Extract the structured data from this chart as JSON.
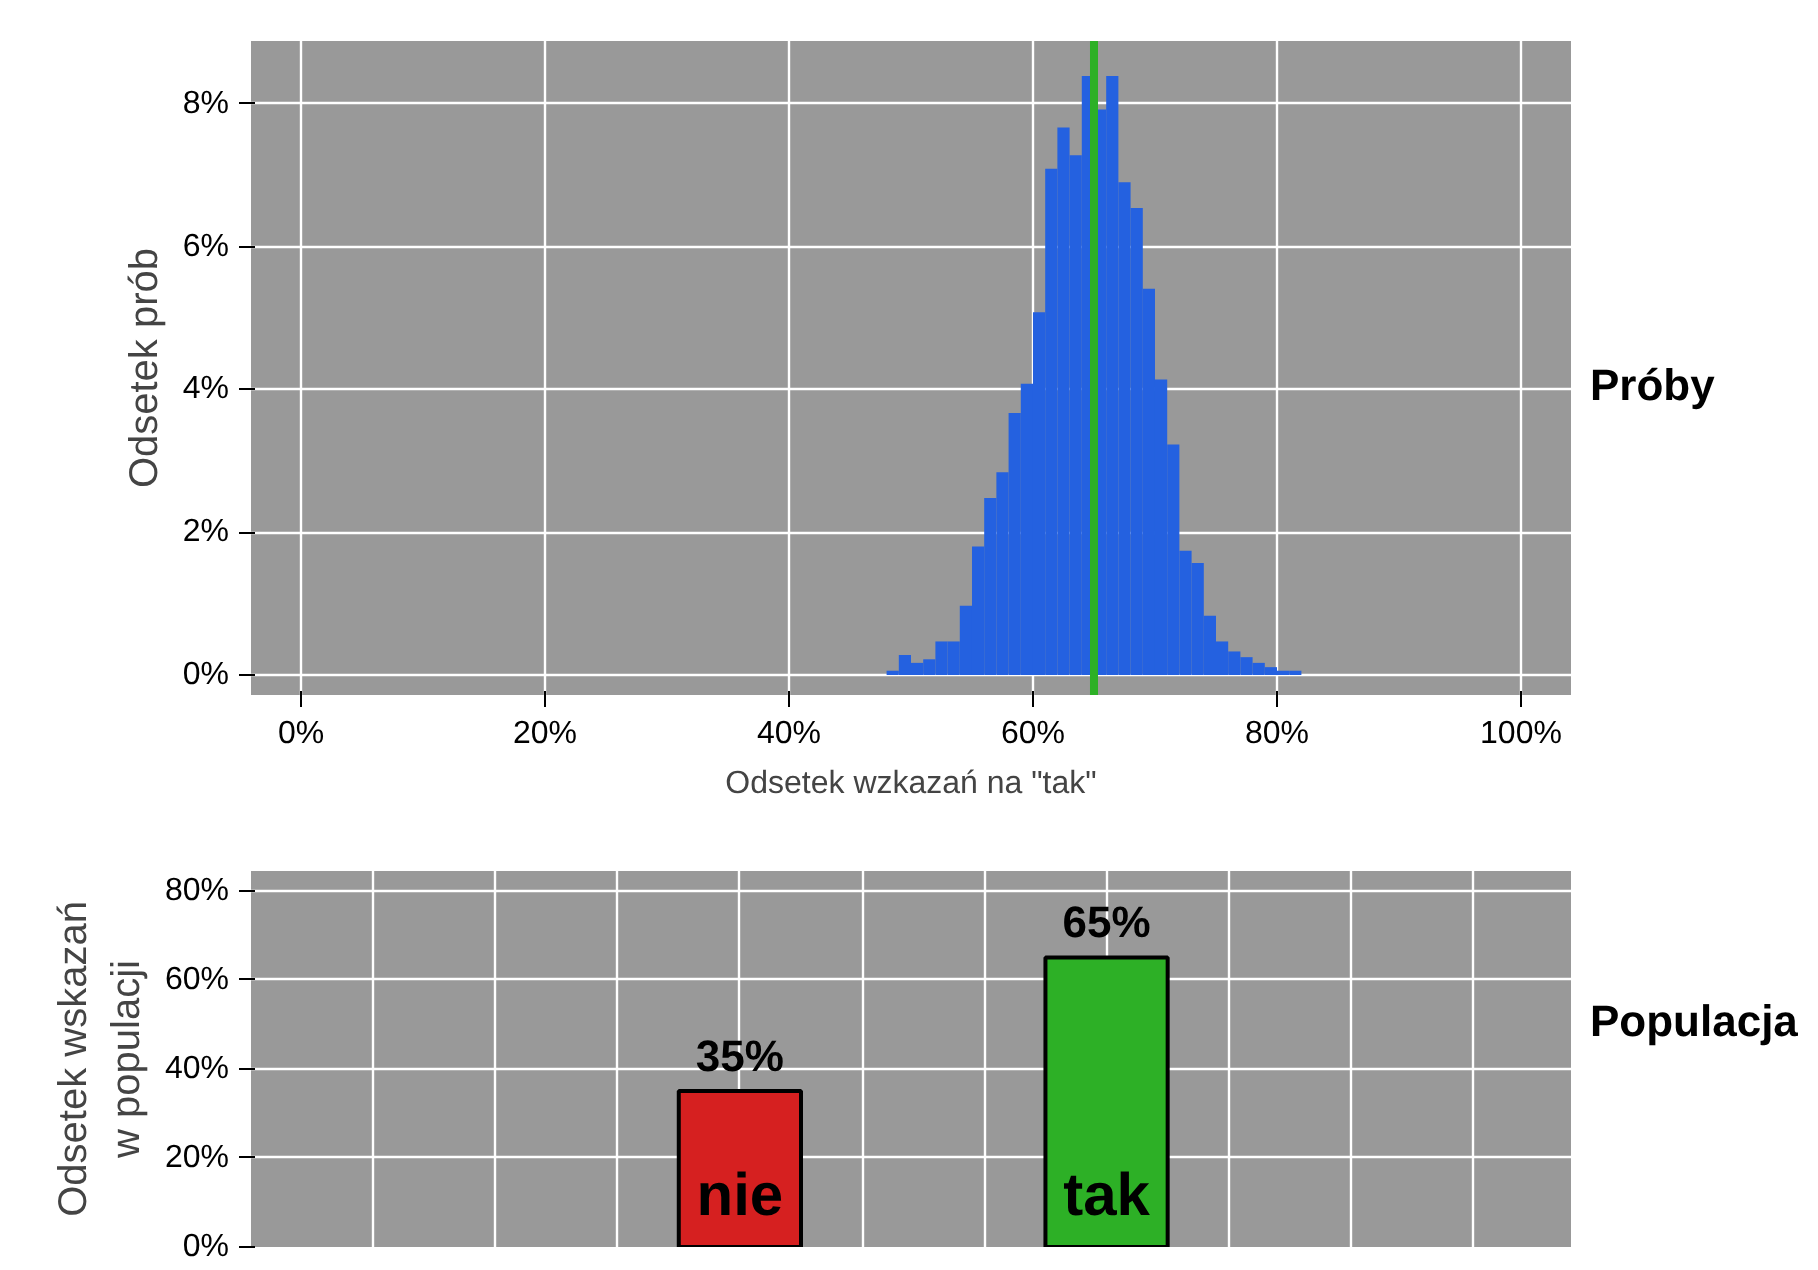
{
  "chart_data": [
    {
      "type": "histogram",
      "title": "Próby",
      "xlabel": "Odsetek wzkazań na \"tak\"",
      "ylabel": "Odsetek prób",
      "bins": [
        48,
        49,
        50,
        51,
        52,
        53,
        54,
        55,
        56,
        57,
        58,
        59,
        60,
        61,
        62,
        63,
        64,
        65,
        66,
        67,
        68,
        69,
        70,
        71,
        72,
        73,
        74,
        75,
        76,
        77,
        78,
        79,
        80,
        81,
        82
      ],
      "values": [
        0.06,
        0.28,
        0.17,
        0.22,
        0.47,
        0.47,
        0.97,
        1.8,
        2.48,
        2.84,
        3.67,
        4.08,
        5.08,
        7.09,
        7.67,
        7.28,
        8.39,
        7.92,
        8.39,
        6.9,
        6.54,
        5.41,
        4.14,
        3.23,
        1.74,
        1.57,
        0.83,
        0.47,
        0.33,
        0.25,
        0.17,
        0.11,
        0.06,
        0.06
      ],
      "color": "#2461e0",
      "xlim": [
        -4.1,
        104.1
      ],
      "ylim": [
        -0.28,
        8.88
      ],
      "xticks": [
        {
          "value": 0,
          "label": "0%"
        },
        {
          "value": 20,
          "label": "20%"
        },
        {
          "value": 40,
          "label": "40%"
        },
        {
          "value": 60,
          "label": "60%"
        },
        {
          "value": 80,
          "label": "80%"
        },
        {
          "value": 100,
          "label": "100%"
        }
      ],
      "yticks": [
        {
          "value": 0,
          "label": "0%"
        },
        {
          "value": 2,
          "label": "2%"
        },
        {
          "value": 4,
          "label": "4%"
        },
        {
          "value": 6,
          "label": "6%"
        },
        {
          "value": 8,
          "label": "8%"
        }
      ],
      "ref_lines": [
        {
          "axis": "x",
          "value": 65,
          "color": "#2db026"
        }
      ],
      "grid": true
    },
    {
      "type": "bar",
      "title": "Populacja",
      "ylabel": "Odsetek wskazań\nw populacji",
      "categories": [
        "nie",
        "tak"
      ],
      "values": [
        35,
        65
      ],
      "colors": [
        "#d62020",
        "#2db026"
      ],
      "value_labels": [
        "35%",
        "65%"
      ],
      "ylim": [
        0,
        84.4
      ],
      "yticks": [
        {
          "value": 0,
          "label": "0%"
        },
        {
          "value": 20,
          "label": "20%"
        },
        {
          "value": 40,
          "label": "40%"
        },
        {
          "value": 60,
          "label": "60%"
        },
        {
          "value": 80,
          "label": "80%"
        }
      ],
      "tick_labels": "y",
      "grid": true
    }
  ]
}
